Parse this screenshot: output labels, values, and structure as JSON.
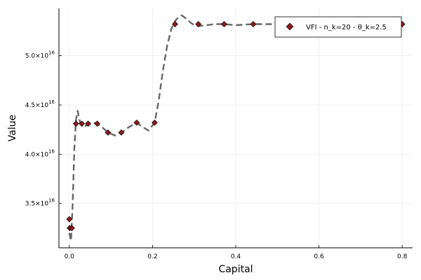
{
  "chart_data": {
    "type": "line",
    "xlabel": "Capital",
    "ylabel": "Value",
    "xlim": [
      -0.025,
      0.825
    ],
    "ylim": [
      3.05e+16,
      5.48e+16
    ],
    "grid": true,
    "legend_position": "top-right",
    "x_ticks": [
      {
        "value": 0.0,
        "label": "0.0"
      },
      {
        "value": 0.2,
        "label": "0.2"
      },
      {
        "value": 0.4,
        "label": "0.4"
      },
      {
        "value": 0.6,
        "label": "0.6"
      },
      {
        "value": 0.8,
        "label": "0.8"
      }
    ],
    "y_ticks": [
      {
        "value": 3.5e+16,
        "mantissa": "3.5×10",
        "exponent": "16"
      },
      {
        "value": 4e+16,
        "mantissa": "4.0×10",
        "exponent": "16"
      },
      {
        "value": 4.5e+16,
        "mantissa": "4.5×10",
        "exponent": "16"
      },
      {
        "value": 5e+16,
        "mantissa": "5.0×10",
        "exponent": "16"
      }
    ],
    "series": [
      {
        "name": "VFI - n_k=20 - θ_k=2.5",
        "marker": "diamond",
        "marker_color": "#8b1a1a",
        "x": [
          0.0,
          0.001,
          0.006,
          0.016,
          0.03,
          0.045,
          0.067,
          0.093,
          0.125,
          0.162,
          0.205,
          0.254,
          0.31,
          0.372,
          0.442,
          0.8
        ],
        "y": [
          3.34e+16,
          3.25e+16,
          3.25e+16,
          4.31e+16,
          4.31e+16,
          4.31e+16,
          4.31e+16,
          4.22e+16,
          4.22e+16,
          4.32e+16,
          4.32e+16,
          5.32e+16,
          5.32e+16,
          5.32e+16,
          5.32e+16,
          5.32e+16
        ]
      }
    ],
    "interpolation": {
      "color": "#666666",
      "style": "dashed",
      "x": [
        0.0,
        0.004,
        0.008,
        0.012,
        0.016,
        0.02,
        0.026,
        0.035,
        0.045,
        0.058,
        0.067,
        0.08,
        0.093,
        0.11,
        0.125,
        0.145,
        0.162,
        0.175,
        0.19,
        0.205,
        0.215,
        0.225,
        0.235,
        0.245,
        0.254,
        0.262,
        0.27,
        0.28,
        0.29,
        0.3,
        0.31,
        0.33,
        0.35,
        0.372,
        0.4,
        0.442,
        0.5,
        0.6,
        0.7,
        0.8
      ],
      "y": [
        3.2e+16,
        3.12e+16,
        3.5e+16,
        4.05e+16,
        4.35e+16,
        4.44e+16,
        4.32e+16,
        4.28e+16,
        4.3e+16,
        4.32e+16,
        4.31e+16,
        4.27e+16,
        4.22e+16,
        4.19e+16,
        4.22e+16,
        4.28e+16,
        4.32e+16,
        4.28e+16,
        4.24e+16,
        4.32e+16,
        4.55e+16,
        4.85e+16,
        5.1e+16,
        5.27e+16,
        5.35e+16,
        5.39e+16,
        5.41e+16,
        5.38e+16,
        5.34e+16,
        5.31e+16,
        5.3e+16,
        5.31e+16,
        5.32e+16,
        5.32e+16,
        5.31e+16,
        5.32e+16,
        5.32e+16,
        5.32e+16,
        5.32e+16,
        5.32e+16
      ]
    }
  }
}
